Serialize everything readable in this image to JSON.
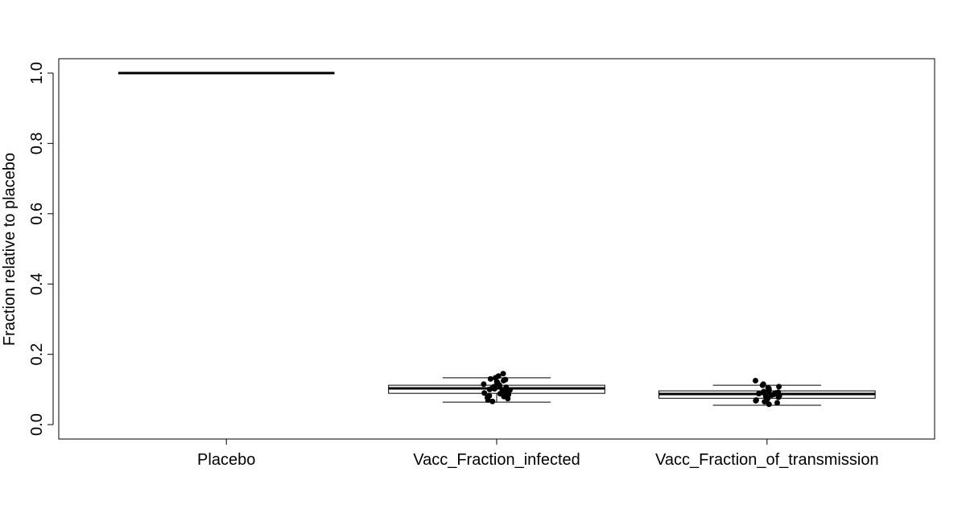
{
  "chart_data": {
    "type": "box",
    "ylabel": "Fraction relative to placebo",
    "categories": [
      "Placebo",
      "Vacc_Fraction_infected",
      "Vacc_Fraction_of_transmission"
    ],
    "boxes": [
      {
        "low": 1,
        "q1": 1,
        "median": 1,
        "q3": 1,
        "high": 1
      },
      {
        "low": 0.064,
        "q1": 0.089,
        "median": 0.103,
        "q3": 0.112,
        "high": 0.133,
        "points": [
          0.145,
          0.138,
          0.133,
          0.13,
          0.128,
          0.125,
          0.122,
          0.12,
          0.118,
          0.115,
          0.113,
          0.11,
          0.108,
          0.106,
          0.104,
          0.102,
          0.1,
          0.098,
          0.096,
          0.094,
          0.092,
          0.09,
          0.088,
          0.085,
          0.082,
          0.08,
          0.077,
          0.074,
          0.07,
          0.066
        ]
      },
      {
        "low": 0.055,
        "q1": 0.075,
        "median": 0.087,
        "q3": 0.096,
        "high": 0.112,
        "points": [
          0.125,
          0.115,
          0.112,
          0.108,
          0.105,
          0.103,
          0.1,
          0.098,
          0.096,
          0.094,
          0.092,
          0.09,
          0.088,
          0.086,
          0.084,
          0.082,
          0.08,
          0.078,
          0.076,
          0.074,
          0.072,
          0.07,
          0.068,
          0.065,
          0.062,
          0.058
        ]
      }
    ],
    "color": "#000000",
    "ylim": [
      -0.041,
      1.041
    ],
    "yticks": [
      {
        "value": 0,
        "label": "0.0"
      },
      {
        "value": 0.2,
        "label": "0.2"
      },
      {
        "value": 0.4,
        "label": "0.4"
      },
      {
        "value": 0.6,
        "label": "0.6"
      },
      {
        "value": 0.8,
        "label": "0.8"
      },
      {
        "value": 1,
        "label": "1.0"
      }
    ]
  }
}
